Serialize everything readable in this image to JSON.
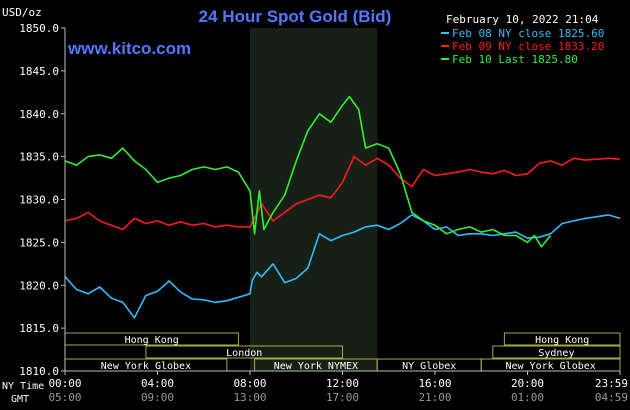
{
  "chart_data": {
    "type": "line",
    "title": "24 Hour Spot Gold (Bid)",
    "watermark": "www.kitco.com",
    "timestamp": "February 10, 2022 21:04",
    "y_unit": "USD/oz",
    "ylim": [
      1810,
      1850
    ],
    "y_ticks": [
      "1850.0",
      "1845.0",
      "1840.0",
      "1835.0",
      "1830.0",
      "1825.0",
      "1820.0",
      "1815.0",
      "1810.0"
    ],
    "grid": "off",
    "legend_position": "top-right",
    "x_row_labels": {
      "ny_time": "NY Time",
      "gmt": "GMT"
    },
    "x_ticks_ny": [
      "00:00",
      "04:00",
      "08:00",
      "12:00",
      "16:00",
      "20:00",
      "23:59"
    ],
    "x_ticks_gmt": [
      "05:00",
      "09:00",
      "13:00",
      "17:00",
      "21:00",
      "01:00",
      "04:59"
    ],
    "highlight_session": {
      "start_hour": 8,
      "end_hour": 13.5
    },
    "series": [
      {
        "name": "Feb 08 NY close 1825.60",
        "color": "#33bbff",
        "hours": [
          0,
          0.5,
          1,
          1.5,
          2,
          2.5,
          3,
          3.5,
          4,
          4.5,
          5,
          5.5,
          6,
          6.5,
          7,
          7.5,
          8,
          8.1,
          8.3,
          8.5,
          9,
          9.5,
          10,
          10.5,
          11,
          11.5,
          12,
          12.5,
          13,
          13.5,
          14,
          14.5,
          15,
          15.5,
          16,
          16.5,
          17,
          17.5,
          18,
          18.5,
          19,
          19.5,
          20,
          20.5,
          21,
          21.5,
          22,
          22.5,
          23,
          23.5,
          24
        ],
        "values": [
          1821.0,
          1819.5,
          1819.0,
          1819.8,
          1818.5,
          1818.0,
          1816.2,
          1818.8,
          1819.3,
          1820.5,
          1819.2,
          1818.4,
          1818.3,
          1818.0,
          1818.2,
          1818.6,
          1819.0,
          1820.6,
          1821.5,
          1821.0,
          1822.5,
          1820.3,
          1820.8,
          1822.0,
          1826.0,
          1825.2,
          1825.8,
          1826.2,
          1826.8,
          1827.0,
          1826.5,
          1827.2,
          1828.2,
          1827.5,
          1826.5,
          1826.8,
          1825.8,
          1826.0,
          1826.0,
          1825.8,
          1826.0,
          1826.2,
          1825.5,
          1825.6,
          1826.0,
          1827.2,
          1827.5,
          1827.8,
          1828.0,
          1828.2,
          1827.8
        ]
      },
      {
        "name": "Feb 09 NY close 1833.20",
        "color": "#ff1a1a",
        "hours": [
          0,
          0.5,
          1,
          1.5,
          2,
          2.5,
          3,
          3.5,
          4,
          4.5,
          5,
          5.5,
          6,
          6.5,
          7,
          7.5,
          8,
          8.5,
          9,
          9.5,
          10,
          10.5,
          11,
          11.5,
          12,
          12.5,
          13,
          13.5,
          14,
          14.5,
          15,
          15.5,
          16,
          16.5,
          17,
          17.5,
          18,
          18.5,
          19,
          19.5,
          20,
          20.5,
          21,
          21.5,
          22,
          22.5,
          23,
          23.5,
          24
        ],
        "values": [
          1827.5,
          1827.8,
          1828.5,
          1827.5,
          1827.0,
          1826.5,
          1827.8,
          1827.2,
          1827.5,
          1827.0,
          1827.4,
          1827.0,
          1827.2,
          1826.8,
          1827.0,
          1826.8,
          1826.8,
          1829.5,
          1827.5,
          1828.5,
          1829.5,
          1830.0,
          1830.5,
          1830.2,
          1832.0,
          1835.0,
          1834.0,
          1834.8,
          1834.0,
          1832.5,
          1831.5,
          1833.5,
          1832.8,
          1833.0,
          1833.2,
          1833.5,
          1833.2,
          1833.0,
          1833.4,
          1832.8,
          1833.0,
          1834.2,
          1834.5,
          1834.0,
          1834.8,
          1834.6,
          1834.7,
          1834.8,
          1834.7
        ]
      },
      {
        "name": "Feb 10 Last 1825.80",
        "color": "#33ee33",
        "hours": [
          0,
          0.5,
          1,
          1.5,
          2,
          2.5,
          3,
          3.5,
          4,
          4.5,
          5,
          5.5,
          6,
          6.5,
          7,
          7.5,
          8,
          8.2,
          8.4,
          8.6,
          9,
          9.5,
          10,
          10.5,
          11,
          11.5,
          12,
          12.3,
          12.7,
          13,
          13.5,
          14,
          14.5,
          15,
          15.5,
          16,
          16.5,
          17,
          17.5,
          18,
          18.5,
          19,
          19.5,
          20,
          20.3,
          20.6,
          21
        ],
        "values": [
          1834.5,
          1834.0,
          1835.0,
          1835.2,
          1834.8,
          1836.0,
          1834.5,
          1833.5,
          1832.0,
          1832.5,
          1832.8,
          1833.5,
          1833.8,
          1833.5,
          1833.8,
          1833.2,
          1831.0,
          1826.0,
          1831.0,
          1826.5,
          1828.5,
          1830.5,
          1834.5,
          1838.0,
          1840.0,
          1839.0,
          1841.0,
          1842.0,
          1840.5,
          1836.0,
          1836.5,
          1836.0,
          1833.0,
          1828.5,
          1827.5,
          1827.0,
          1826.0,
          1826.5,
          1826.8,
          1826.2,
          1826.5,
          1825.8,
          1825.8,
          1825.0,
          1825.8,
          1824.5,
          1825.8
        ]
      }
    ],
    "sessions": [
      {
        "name": "Hong Kong",
        "start_hour": 0,
        "end_hour": 7.5,
        "row": 0
      },
      {
        "name": "London",
        "start_hour": 3.5,
        "end_hour": 12,
        "row": 1
      },
      {
        "name": "New York Globex",
        "start_hour": 0,
        "end_hour": 7,
        "row": 2
      },
      {
        "name": "New York NYMEX",
        "start_hour": 8.2,
        "end_hour": 13.5,
        "row": 2
      },
      {
        "name": "NY Globex",
        "start_hour": 13.5,
        "end_hour": 18,
        "row": 2
      },
      {
        "name": "Hong Kong",
        "start_hour": 19,
        "end_hour": 24,
        "row": 0
      },
      {
        "name": "Sydney",
        "start_hour": 18.5,
        "end_hour": 24,
        "row": 1
      },
      {
        "name": "New York Globex",
        "start_hour": 18,
        "end_hour": 24,
        "row": 2
      }
    ]
  }
}
